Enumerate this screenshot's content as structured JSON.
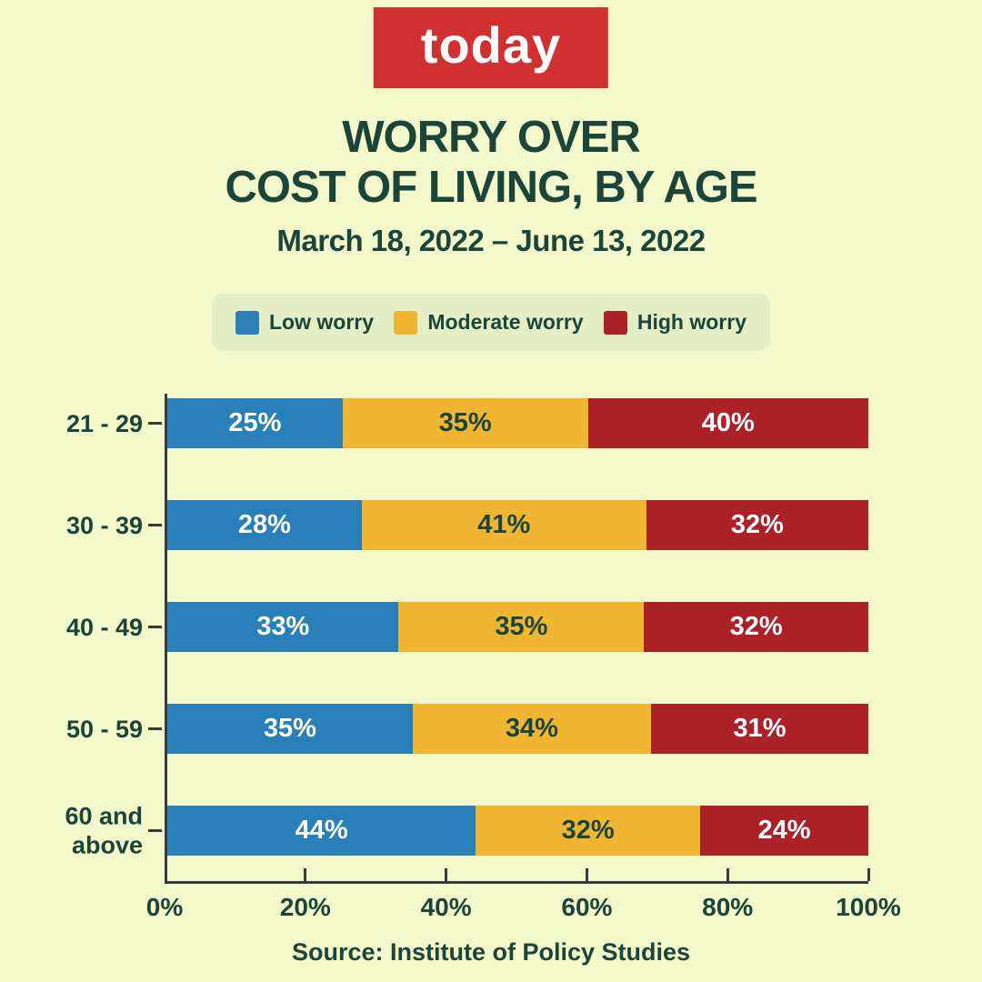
{
  "colors": {
    "background": "#f4f9cc",
    "legend_panel": "#e5efc5",
    "text_dark_green": "#1a4538",
    "axis": "#3a3a3a",
    "logo_red": "#d23030"
  },
  "logo": {
    "text": "today"
  },
  "header": {
    "title_line1": "WORRY OVER",
    "title_line2": "COST OF LIVING, BY AGE",
    "subtitle": "March 18, 2022 – June 13, 2022"
  },
  "legend": {
    "items": [
      {
        "label": "Low worry",
        "color": "#2980b9"
      },
      {
        "label": "Moderate worry",
        "color": "#f0b531"
      },
      {
        "label": "High worry",
        "color": "#ab2125"
      }
    ]
  },
  "chart_data": {
    "type": "bar",
    "orientation": "horizontal",
    "stacked": true,
    "title": "Worry over cost of living, by age",
    "subtitle": "March 18, 2022 – June 13, 2022",
    "categories": [
      "21 - 29",
      "30 - 39",
      "40 - 49",
      "50 - 59",
      "60 and above"
    ],
    "series": [
      {
        "name": "Low worry",
        "color": "#2980b9",
        "label_color": "#ffffff",
        "values": [
          25,
          28,
          33,
          35,
          44
        ]
      },
      {
        "name": "Moderate worry",
        "color": "#f0b531",
        "label_color": "#1a4538",
        "values": [
          35,
          41,
          35,
          34,
          32
        ]
      },
      {
        "name": "High worry",
        "color": "#ab2125",
        "label_color": "#ffffff",
        "values": [
          40,
          32,
          32,
          31,
          24
        ]
      }
    ],
    "value_suffix": "%",
    "x_ticks": [
      "0%",
      "20%",
      "40%",
      "60%",
      "80%",
      "100%"
    ],
    "xlim": [
      0,
      100
    ],
    "grid": false,
    "legend_position": "top"
  },
  "source": {
    "text": "Source: Institute of Policy Studies"
  }
}
